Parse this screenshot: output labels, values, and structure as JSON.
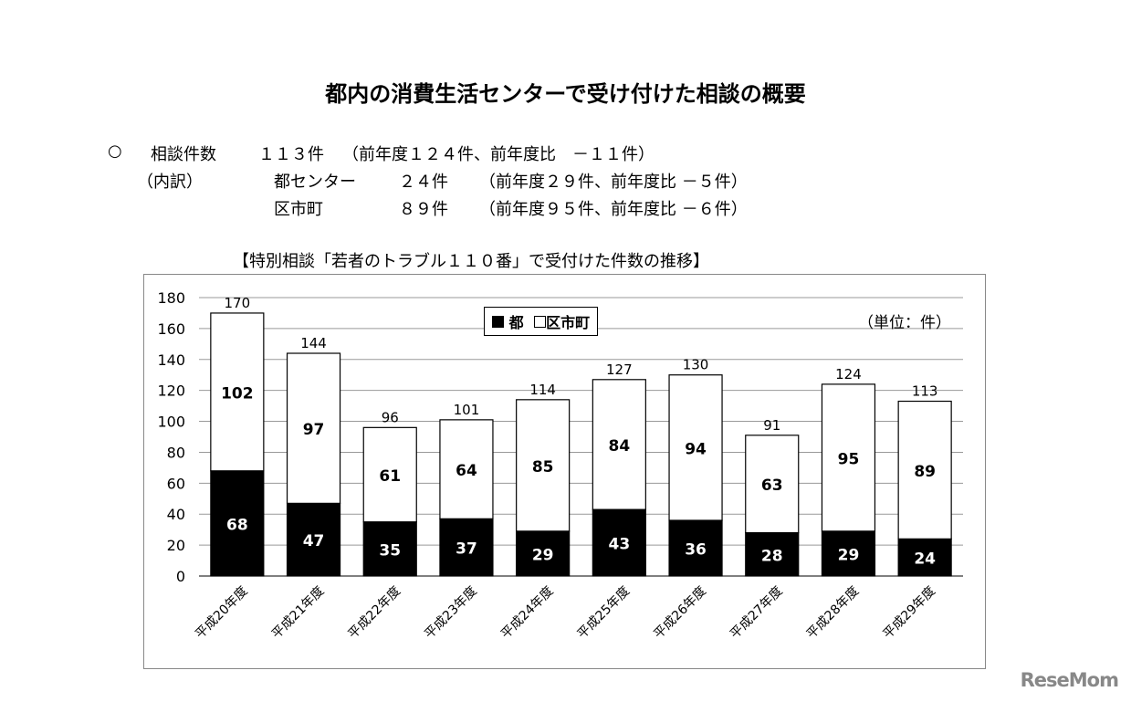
{
  "title": "都内の消費生活センターで受け付けた相談の概要",
  "summary": {
    "bullet": "○",
    "line1_label": "相談件数",
    "line1_value": "１１３件",
    "line1_note": "（前年度１２４件、前年度比　－１１件）",
    "breakdown_label": "（内訳）",
    "line2_label": "都センター",
    "line2_value": "２４件",
    "line2_note": "（前年度２９件、前年度比 －５件）",
    "line3_label": "区市町",
    "line3_value": "８９件",
    "line3_note": "（前年度９５件、前年度比 －６件）"
  },
  "logo": "ReseMom",
  "chart_data": {
    "type": "bar",
    "stacked": true,
    "title": "【特別相談「若者のトラブル１１０番」で受付けた件数の推移】",
    "unit_note": "（単位：件）",
    "categories": [
      "平成20年度",
      "平成21年度",
      "平成22年度",
      "平成23年度",
      "平成24年度",
      "平成25年度",
      "平成26年度",
      "平成27年度",
      "平成28年度",
      "平成29年度"
    ],
    "series": [
      {
        "name": "都",
        "color": "#000000",
        "values": [
          68,
          47,
          35,
          37,
          29,
          43,
          36,
          28,
          29,
          24
        ]
      },
      {
        "name": "区市町",
        "color": "#ffffff",
        "values": [
          102,
          97,
          61,
          64,
          85,
          84,
          94,
          63,
          95,
          89
        ]
      }
    ],
    "totals": [
      170,
      144,
      96,
      101,
      114,
      127,
      130,
      91,
      124,
      113
    ],
    "ylim": [
      0,
      180
    ],
    "yticks": [
      0,
      20,
      40,
      60,
      80,
      100,
      120,
      140,
      160,
      180
    ],
    "grid": true,
    "legend": "top-center"
  }
}
